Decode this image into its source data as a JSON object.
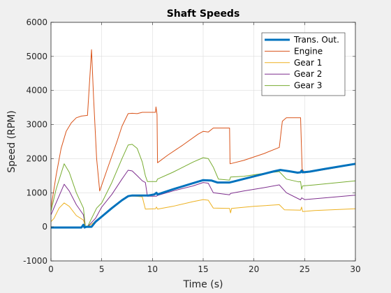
{
  "chart_data": {
    "type": "line",
    "title": "Shaft Speeds",
    "xlabel": "Time (s)",
    "ylabel": "Speed (RPM)",
    "xlim": [
      0,
      30
    ],
    "ylim": [
      -1000,
      6000
    ],
    "xticks": [
      0,
      5,
      10,
      15,
      20,
      25,
      30
    ],
    "yticks": [
      -1000,
      0,
      1000,
      2000,
      3000,
      4000,
      5000,
      6000
    ],
    "grid": true,
    "legend_position": "top-right",
    "series": [
      {
        "name": "Trans. Out.",
        "color": "#0072bd",
        "width": 3,
        "points": [
          [
            0,
            -20
          ],
          [
            3,
            -20
          ],
          [
            3.2,
            60
          ],
          [
            3.3,
            -20
          ],
          [
            3.5,
            0
          ],
          [
            4,
            0
          ],
          [
            4.4,
            150
          ],
          [
            5,
            300
          ],
          [
            6,
            550
          ],
          [
            7,
            780
          ],
          [
            7.6,
            900
          ],
          [
            8,
            920
          ],
          [
            9,
            920
          ],
          [
            9.6,
            920
          ],
          [
            10.2,
            950
          ],
          [
            10.4,
            1000
          ],
          [
            10.5,
            950
          ],
          [
            12,
            1100
          ],
          [
            14,
            1280
          ],
          [
            15,
            1370
          ],
          [
            15.8,
            1360
          ],
          [
            16.4,
            1300
          ],
          [
            17.2,
            1300
          ],
          [
            17.6,
            1300
          ],
          [
            18,
            1330
          ],
          [
            20,
            1480
          ],
          [
            22,
            1630
          ],
          [
            22.6,
            1670
          ],
          [
            23.5,
            1630
          ],
          [
            24.3,
            1590
          ],
          [
            24.6,
            1600
          ],
          [
            24.7,
            1650
          ],
          [
            24.8,
            1600
          ],
          [
            25.5,
            1620
          ],
          [
            27,
            1700
          ],
          [
            30,
            1850
          ]
        ]
      },
      {
        "name": "Engine",
        "color": "#d95319",
        "width": 1,
        "points": [
          [
            0,
            550
          ],
          [
            0.5,
            1500
          ],
          [
            1,
            2300
          ],
          [
            1.5,
            2800
          ],
          [
            2,
            3050
          ],
          [
            2.5,
            3200
          ],
          [
            3,
            3250
          ],
          [
            3.6,
            3270
          ],
          [
            3.85,
            4500
          ],
          [
            4.0,
            5200
          ],
          [
            4.2,
            3800
          ],
          [
            4.5,
            2000
          ],
          [
            4.8,
            1050
          ],
          [
            5.5,
            1650
          ],
          [
            6.5,
            2500
          ],
          [
            7,
            2950
          ],
          [
            7.6,
            3320
          ],
          [
            8,
            3330
          ],
          [
            8.5,
            3320
          ],
          [
            9,
            3360
          ],
          [
            10.3,
            3360
          ],
          [
            10.35,
            3520
          ],
          [
            10.45,
            3300
          ],
          [
            10.5,
            1880
          ],
          [
            11.5,
            2100
          ],
          [
            13,
            2400
          ],
          [
            14.5,
            2720
          ],
          [
            15,
            2800
          ],
          [
            15.5,
            2780
          ],
          [
            16,
            2900
          ],
          [
            17.6,
            2900
          ],
          [
            17.65,
            1850
          ],
          [
            19,
            1950
          ],
          [
            21,
            2150
          ],
          [
            22.5,
            2330
          ],
          [
            22.8,
            3100
          ],
          [
            23.2,
            3200
          ],
          [
            24.6,
            3200
          ],
          [
            24.75,
            1700
          ],
          [
            25,
            1580
          ],
          [
            26,
            1630
          ],
          [
            28,
            1730
          ],
          [
            30,
            1850
          ]
        ]
      },
      {
        "name": "Gear 1",
        "color": "#edb120",
        "width": 1,
        "points": [
          [
            0,
            150
          ],
          [
            0.3,
            250
          ],
          [
            0.8,
            550
          ],
          [
            1.3,
            700
          ],
          [
            1.8,
            600
          ],
          [
            2.5,
            330
          ],
          [
            3.2,
            200
          ],
          [
            3.4,
            -20
          ],
          [
            3.6,
            0
          ],
          [
            4.2,
            120
          ],
          [
            5,
            300
          ],
          [
            6,
            550
          ],
          [
            7,
            780
          ],
          [
            7.6,
            900
          ],
          [
            8.3,
            900
          ],
          [
            9,
            880
          ],
          [
            9.3,
            520
          ],
          [
            10.3,
            530
          ],
          [
            10.4,
            580
          ],
          [
            10.5,
            520
          ],
          [
            12,
            600
          ],
          [
            14,
            740
          ],
          [
            15,
            800
          ],
          [
            15.5,
            780
          ],
          [
            16,
            550
          ],
          [
            17.6,
            540
          ],
          [
            17.7,
            410
          ],
          [
            17.8,
            540
          ],
          [
            20,
            600
          ],
          [
            22.5,
            650
          ],
          [
            23,
            500
          ],
          [
            24.6,
            490
          ],
          [
            24.7,
            580
          ],
          [
            24.8,
            450
          ],
          [
            26,
            480
          ],
          [
            30,
            530
          ]
        ]
      },
      {
        "name": "Gear 2",
        "color": "#7e2f8e",
        "width": 1,
        "points": [
          [
            0,
            350
          ],
          [
            0.5,
            700
          ],
          [
            1.3,
            1250
          ],
          [
            1.8,
            1050
          ],
          [
            2.5,
            650
          ],
          [
            3.2,
            350
          ],
          [
            3.4,
            -20
          ],
          [
            3.6,
            0
          ],
          [
            4.4,
            250
          ],
          [
            5,
            580
          ],
          [
            6,
            950
          ],
          [
            7,
            1400
          ],
          [
            7.6,
            1660
          ],
          [
            8,
            1640
          ],
          [
            8.5,
            1500
          ],
          [
            9,
            1350
          ],
          [
            9.3,
            1300
          ],
          [
            9.5,
            900
          ],
          [
            10.4,
            900
          ],
          [
            10.5,
            920
          ],
          [
            12,
            1050
          ],
          [
            14,
            1200
          ],
          [
            15,
            1300
          ],
          [
            15.5,
            1280
          ],
          [
            16,
            1000
          ],
          [
            17.6,
            940
          ],
          [
            17.7,
            980
          ],
          [
            19,
            1050
          ],
          [
            21,
            1150
          ],
          [
            22.5,
            1230
          ],
          [
            23.2,
            1000
          ],
          [
            24.6,
            790
          ],
          [
            24.7,
            850
          ],
          [
            25,
            800
          ],
          [
            27,
            850
          ],
          [
            30,
            930
          ]
        ]
      },
      {
        "name": "Gear 3",
        "color": "#77ac30",
        "width": 1,
        "points": [
          [
            0,
            450
          ],
          [
            0.5,
            1100
          ],
          [
            1.3,
            1850
          ],
          [
            1.8,
            1600
          ],
          [
            2.5,
            1000
          ],
          [
            3.2,
            550
          ],
          [
            3.4,
            -20
          ],
          [
            3.6,
            0
          ],
          [
            4.5,
            550
          ],
          [
            5,
            700
          ],
          [
            6,
            1300
          ],
          [
            7,
            2000
          ],
          [
            7.6,
            2400
          ],
          [
            8,
            2420
          ],
          [
            8.5,
            2300
          ],
          [
            9,
            1900
          ],
          [
            9.3,
            1500
          ],
          [
            9.5,
            1330
          ],
          [
            10.4,
            1330
          ],
          [
            10.5,
            1400
          ],
          [
            12,
            1600
          ],
          [
            14,
            1900
          ],
          [
            15,
            2030
          ],
          [
            15.5,
            2000
          ],
          [
            16,
            1750
          ],
          [
            16.5,
            1400
          ],
          [
            17.6,
            1370
          ],
          [
            17.7,
            1460
          ],
          [
            19,
            1480
          ],
          [
            21,
            1570
          ],
          [
            22.5,
            1620
          ],
          [
            23.2,
            1400
          ],
          [
            24.4,
            1320
          ],
          [
            24.6,
            1330
          ],
          [
            24.7,
            1100
          ],
          [
            24.8,
            1200
          ],
          [
            26,
            1230
          ],
          [
            28,
            1290
          ],
          [
            30,
            1350
          ]
        ]
      }
    ]
  }
}
